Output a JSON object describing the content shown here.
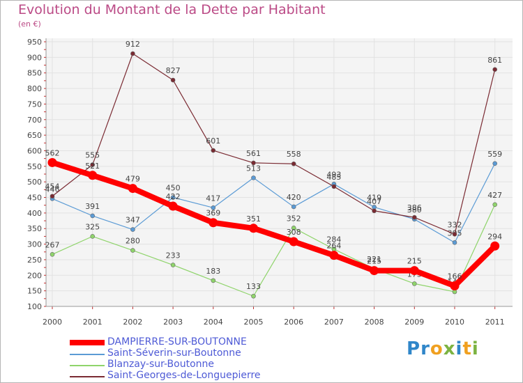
{
  "title": "Evolution du Montant de la Dette par Habitant",
  "subtitle": "(en €)",
  "brand": {
    "letters": [
      {
        "ch": "P",
        "color": "#2f86c9"
      },
      {
        "ch": "r",
        "color": "#2f86c9"
      },
      {
        "ch": "o",
        "color": "#f0a020"
      },
      {
        "ch": "x",
        "color": "#7cb342"
      },
      {
        "ch": "i",
        "color": "#2f86c9"
      },
      {
        "ch": "t",
        "color": "#f0a020"
      },
      {
        "ch": "i",
        "color": "#7cb342"
      }
    ]
  },
  "chart_data": {
    "type": "line",
    "x": [
      "2000",
      "2001",
      "2002",
      "2003",
      "2004",
      "2005",
      "2006",
      "2007",
      "2008",
      "2009",
      "2010",
      "2011"
    ],
    "ylim": [
      100,
      950
    ],
    "yticks": [
      100,
      150,
      200,
      250,
      300,
      350,
      400,
      450,
      500,
      550,
      600,
      650,
      700,
      750,
      800,
      850,
      900,
      950
    ],
    "grid": true,
    "legend_position": "bottom",
    "series": [
      {
        "name": "Saint-Séverin-sur-Boutonne",
        "color": "#5b9bd5",
        "values": [
          446,
          391,
          347,
          450,
          417,
          513,
          420,
          493,
          419,
          380,
          305,
          559
        ]
      },
      {
        "name": "Blanzay-sur-Boutonne",
        "color": "#8fd46b",
        "values": [
          267,
          325,
          280,
          233,
          183,
          133,
          352,
          284,
          221,
          173,
          147,
          427
        ]
      },
      {
        "name": "Saint-Georges-de-Longuepierre",
        "color": "#7a2a32",
        "values": [
          454,
          555,
          912,
          827,
          601,
          561,
          558,
          485,
          407,
          386,
          332,
          861
        ]
      },
      {
        "name": "DAMPIERRE-SUR-BOUTONNE",
        "color": "#ff0000",
        "values": [
          562,
          521,
          479,
          422,
          369,
          351,
          308,
          264,
          215,
          215,
          166,
          294
        ]
      }
    ]
  }
}
